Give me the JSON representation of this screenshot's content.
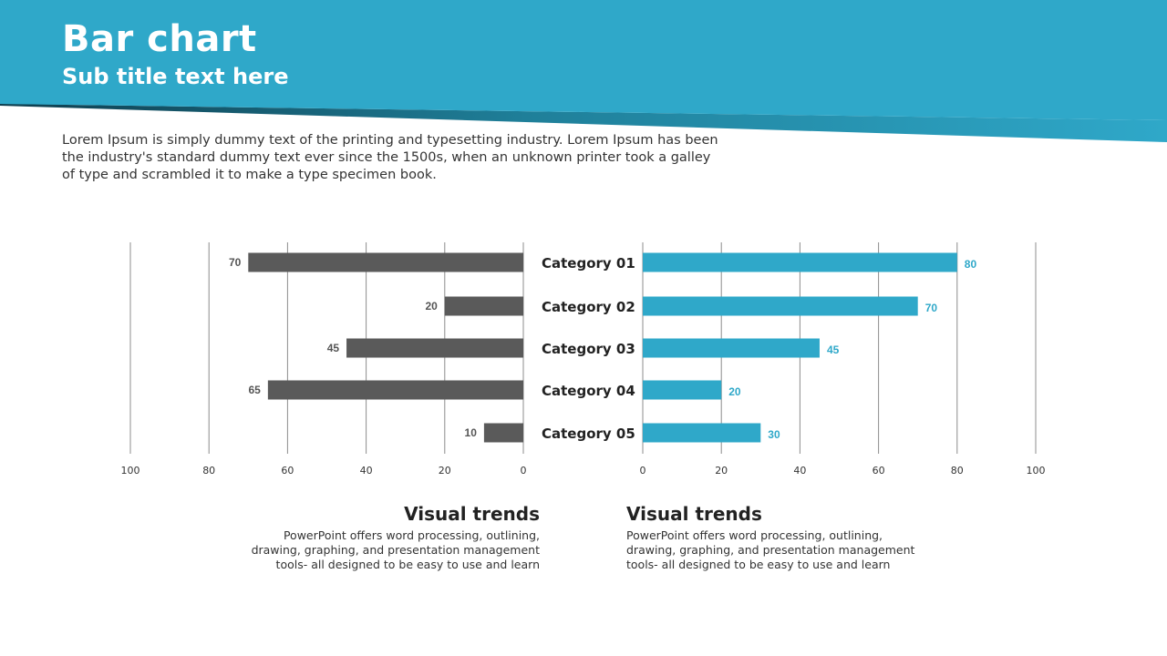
{
  "header": {
    "title": "Bar chart",
    "subtitle": "Sub title text here",
    "color": "#2fa8c9"
  },
  "intro_text": "Lorem Ipsum is simply dummy text of the printing and typesetting industry. Lorem Ipsum has been the industry's standard dummy text ever since the 1500s, when an unknown printer took a galley of type and scrambled it to make a type specimen book.",
  "chart_data": {
    "type": "bar",
    "orientation": "horizontal-butterfly",
    "categories": [
      "Category 01",
      "Category 02",
      "Category 03",
      "Category 04",
      "Category 05"
    ],
    "xlim": [
      0,
      100
    ],
    "ticks": [
      0,
      20,
      40,
      60,
      80,
      100
    ],
    "grid": true,
    "series": [
      {
        "side": "left",
        "values": [
          70,
          20,
          45,
          65,
          10
        ],
        "color": "#5a5a5a"
      },
      {
        "side": "right",
        "values": [
          80,
          70,
          45,
          20,
          30
        ],
        "color": "#2fa8c9"
      }
    ]
  },
  "trends": {
    "left": {
      "title": "Visual trends",
      "text": "PowerPoint offers word processing, outlining, drawing, graphing, and presentation management tools- all designed to be easy to use and learn"
    },
    "right": {
      "title": "Visual trends",
      "text": "PowerPoint offers word processing, outlining, drawing, graphing, and presentation management tools- all designed to be easy to use and learn"
    }
  }
}
